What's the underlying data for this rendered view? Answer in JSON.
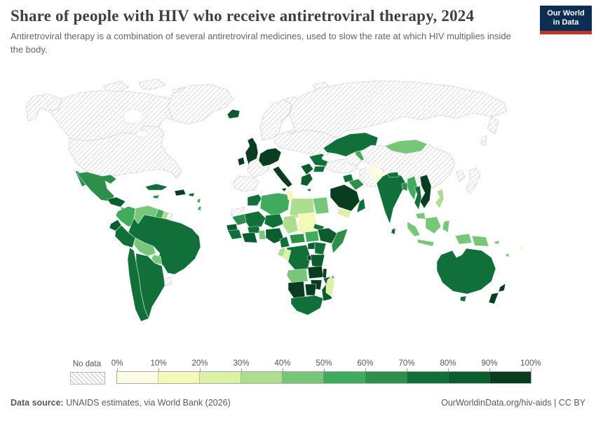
{
  "header": {
    "title": "Share of people with HIV who receive antiretroviral therapy, 2024",
    "subtitle": "Antiretroviral therapy is a combination of several antiretroviral medicines, used to slow the rate at which HIV multiplies inside the body.",
    "logo": {
      "line1": "Our World",
      "line2": "in Data",
      "bg_color": "#0d2e52",
      "accent_color": "#c0362c"
    }
  },
  "legend": {
    "no_data_label": "No data",
    "ticks": [
      "0%",
      "10%",
      "20%",
      "30%",
      "40%",
      "50%",
      "60%",
      "70%",
      "80%",
      "90%",
      "100%"
    ],
    "buckets": [
      {
        "key": "0-10",
        "color": "#fbfce3"
      },
      {
        "key": "10-20",
        "color": "#f3f9b6"
      },
      {
        "key": "20-30",
        "color": "#dcf1a5"
      },
      {
        "key": "30-40",
        "color": "#addd8e"
      },
      {
        "key": "40-50",
        "color": "#78c679"
      },
      {
        "key": "50-60",
        "color": "#41ab5d"
      },
      {
        "key": "60-70",
        "color": "#2e8f4c"
      },
      {
        "key": "70-80",
        "color": "#11703a"
      },
      {
        "key": "80-90",
        "color": "#0b5d30"
      },
      {
        "key": "90-100",
        "color": "#083d20"
      }
    ]
  },
  "footer": {
    "source_label": "Data source:",
    "source_text": " UNAIDS estimates, via World Bank (2026)",
    "credit": "OurWorldinData.org/hiv-aids | CC BY"
  },
  "chart_data": {
    "type": "choropleth",
    "title": "Share of people with HIV who receive antiretroviral therapy",
    "year": 2024,
    "unit": "%",
    "legend_ticks_percent": [
      0,
      10,
      20,
      30,
      40,
      50,
      60,
      70,
      80,
      90,
      100
    ],
    "regions": {
      "alaska": "no-data",
      "canada": "no-data",
      "arctic-islands": "no-data",
      "greenland": "no-data",
      "united-states": "no-data",
      "baja-california": "60-70",
      "mexico": "60-70",
      "guatemala-honduras": "80-90",
      "nicaragua-panama": "60-70",
      "cuba": "70-80",
      "jamaica": "60-70",
      "hispaniola": "90-100",
      "puerto-rico": "70-80",
      "lesser-antilles": "50-60",
      "colombia": "50-60",
      "venezuela": "40-50",
      "guyana": "50-60",
      "suriname": "30-40",
      "french-guiana": "no-data",
      "ecuador": "80-90",
      "peru": "70-80",
      "brazil": "70-80",
      "bolivia": "40-50",
      "paraguay": "40-50",
      "chile": "70-80",
      "argentina": "70-80",
      "uruguay": "no-data",
      "iceland": "80-90",
      "ireland": "90-100",
      "united-kingdom": "90-100",
      "scandinavia": "no-data",
      "finland": "no-data",
      "svalbard": "no-data",
      "france": "no-data",
      "iberia": "no-data",
      "central-europe": "90-100",
      "italy": "90-100",
      "sicily": "90-100",
      "baltics": "50-60",
      "poland-ukraine": "no-data",
      "hungary-romania": "70-80",
      "balkans": "80-90",
      "bulgaria": "70-80",
      "greece": "80-90",
      "crete": "80-90",
      "turkey": "no-data",
      "caucasus": "70-80",
      "russia": "no-data",
      "kamchatka": "no-data",
      "sakhalin": "no-data",
      "kazakhstan": "70-80",
      "uzbekistan": "50-60",
      "turkmenistan": "no-data",
      "kyrgyzstan-tajikistan": "60-70",
      "mongolia": "40-50",
      "china": "no-data",
      "korea": "no-data",
      "japan": "no-data",
      "syria": "70-80",
      "iraq": "60-70",
      "iran": "no-data",
      "saudi-arabia": "90-100",
      "yemen": "20-30",
      "oman": "70-80",
      "egypt": "40-50",
      "libya": "30-40",
      "tunisia": "10-20",
      "algeria": "50-60",
      "morocco": "70-80",
      "western-sahara": "no-data",
      "mauritania": "60-70",
      "mali": "70-80",
      "niger": "70-80",
      "chad": "30-40",
      "sudan": "10-20",
      "eritrea": "70-80",
      "senegal": "80-90",
      "guinea": "70-80",
      "ivory-coast-ghana": "80-90",
      "burkina-faso": "70-80",
      "togo-benin": "40-50",
      "nigeria": "80-90",
      "cameroon": "70-80",
      "central-african-republic": "60-70",
      "south-sudan": "50-60",
      "ethiopia": "80-90",
      "somalia": "60-70",
      "uganda": "80-90",
      "kenya": "70-80",
      "dr-congo": "70-80",
      "gabon": "30-40",
      "congo": "20-30",
      "rwanda-burundi": "90-100",
      "tanzania": "80-90",
      "angola": "40-50",
      "zambia": "90-100",
      "malawi": "90-100",
      "mozambique": "80-90",
      "zimbabwe": "90-100",
      "namibia": "90-100",
      "botswana": "90-100",
      "south-africa": "70-80",
      "madagascar": "20-30",
      "afghanistan": "0-10",
      "pakistan": "0-10",
      "india": "70-80",
      "nepal": "70-80",
      "bangladesh": "60-70",
      "sri-lanka": "70-80",
      "myanmar": "50-60",
      "thailand": "70-80",
      "vietnam-laos-cambodia": "90-100",
      "malaysia": "40-50",
      "sumatra": "40-50",
      "java": "40-50",
      "borneo": "40-50",
      "sulawesi": "40-50",
      "philippines": "30-40",
      "west-papua": "40-50",
      "papua-new-guinea": "40-50",
      "solomon-islands": "40-50",
      "fiji": "10-20",
      "vanuatu": "40-50",
      "australia": "70-80",
      "tasmania": "70-80",
      "new-zealand": "90-100"
    }
  }
}
